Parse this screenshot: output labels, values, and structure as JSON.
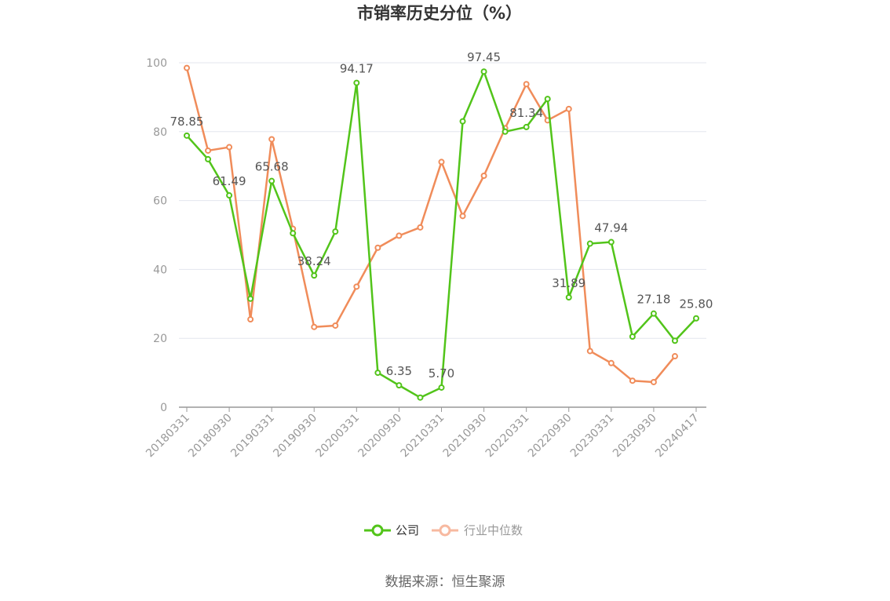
{
  "title": "市销率历史分位（%）",
  "source": "数据来源：恒生聚源",
  "colors": {
    "company": "#52c41a",
    "industry": "#f08c5a",
    "industry_legend": "#f7b9a0",
    "grid": "#e3e6ee",
    "axis": "#999999"
  },
  "chart_data": {
    "type": "line",
    "title": "市销率历史分位（%）",
    "ylim": [
      0,
      100
    ],
    "yticks": [
      0,
      20,
      40,
      60,
      80,
      100
    ],
    "grid": true,
    "legend_position": "bottom",
    "x": [
      "20180331",
      "20180630",
      "20180930",
      "20181231",
      "20190331",
      "20190630",
      "20190930",
      "20191231",
      "20200331",
      "20200630",
      "20200930",
      "20201231",
      "20210331",
      "20210630",
      "20210930",
      "20211231",
      "20220331",
      "20220630",
      "20220930",
      "20221231",
      "20230331",
      "20230630",
      "20230930",
      "20231231",
      "20240417"
    ],
    "xtick_labels": [
      "20180331",
      "20180930",
      "20190331",
      "20190930",
      "20200331",
      "20200930",
      "20210331",
      "20210930",
      "20220331",
      "20220930",
      "20230331",
      "20230930",
      "20240417"
    ],
    "series": [
      {
        "name": "公司",
        "values": [
          78.85,
          72.0,
          61.49,
          31.5,
          65.68,
          50.5,
          38.24,
          51.0,
          94.17,
          10.0,
          6.35,
          2.8,
          5.7,
          83.0,
          97.45,
          80.0,
          81.34,
          89.5,
          31.89,
          47.5,
          47.94,
          20.5,
          27.18,
          19.3,
          25.8
        ],
        "labels": [
          "78.85",
          "",
          "61.49",
          "",
          "65.68",
          "",
          "38.24",
          "",
          "94.17",
          "",
          "6.35",
          "",
          "5.70",
          "",
          "97.45",
          "",
          "81.34",
          "",
          "31.89",
          "",
          "47.94",
          "",
          "27.18",
          "",
          "25.80"
        ]
      },
      {
        "name": "行业中位数",
        "values": [
          98.5,
          74.5,
          75.5,
          25.5,
          77.8,
          51.8,
          23.3,
          23.7,
          35.0,
          46.3,
          49.8,
          52.2,
          71.2,
          55.5,
          67.2,
          81.0,
          93.8,
          83.3,
          86.6,
          16.3,
          12.8,
          7.7,
          7.3,
          14.8,
          null
        ]
      }
    ]
  }
}
